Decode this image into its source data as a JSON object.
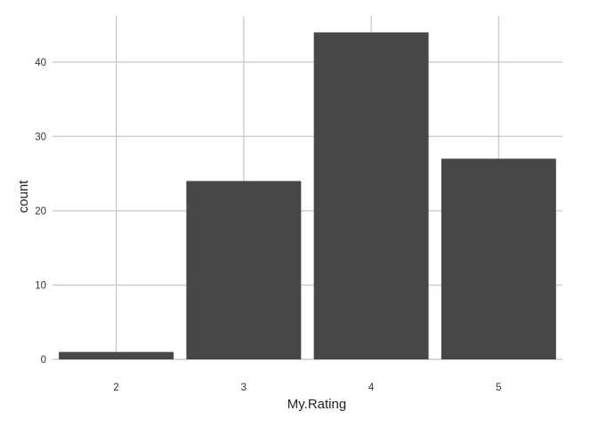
{
  "chart_data": {
    "type": "bar",
    "title": "",
    "xlabel": "My.Rating",
    "ylabel": "count",
    "categories": [
      "2",
      "3",
      "4",
      "5"
    ],
    "values": [
      1,
      24,
      44,
      27
    ],
    "ylim": [
      0,
      46.2
    ],
    "yticks": [
      0,
      10,
      20,
      30,
      40
    ],
    "grid": true,
    "colors": {
      "bar": "#474747",
      "grid": "#cccccc",
      "background": "#ffffff"
    }
  }
}
